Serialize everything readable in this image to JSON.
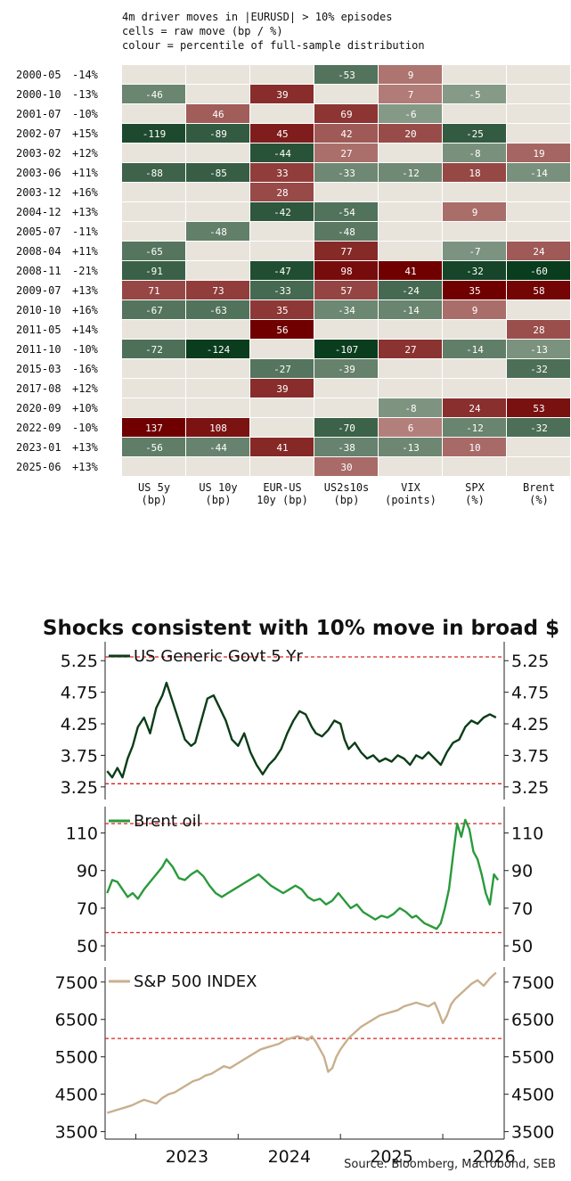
{
  "heatmap": {
    "title_lines": [
      "4m driver moves in |EURUSD| > 10% episodes",
      "cells = raw move (bp / %)",
      "colour = percentile of full-sample distribution"
    ],
    "columns": [
      {
        "name": "US 5y",
        "unit": "(bp)"
      },
      {
        "name": "US 10y",
        "unit": "(bp)"
      },
      {
        "name": "EUR-US",
        "unit": "10y (bp)"
      },
      {
        "name": "US2s10s",
        "unit": "(bp)"
      },
      {
        "name": "VIX",
        "unit": "(points)"
      },
      {
        "name": "SPX",
        "unit": "(%)"
      },
      {
        "name": "Brent",
        "unit": "(%)"
      }
    ]
  },
  "chart_data": [
    {
      "type": "heatmap",
      "rows": [
        {
          "date": "2000-05",
          "move": "-14%",
          "cells": [
            null,
            null,
            null,
            -53,
            9,
            null,
            null
          ]
        },
        {
          "date": "2000-10",
          "move": "-13%",
          "cells": [
            -46,
            null,
            39,
            null,
            7,
            -5,
            null
          ]
        },
        {
          "date": "2001-07",
          "move": "-10%",
          "cells": [
            null,
            46,
            null,
            69,
            -6,
            null,
            null
          ]
        },
        {
          "date": "2002-07",
          "move": "+15%",
          "cells": [
            -119,
            -89,
            45,
            42,
            20,
            -25,
            null
          ]
        },
        {
          "date": "2003-02",
          "move": "+12%",
          "cells": [
            null,
            null,
            -44,
            27,
            null,
            -8,
            19
          ]
        },
        {
          "date": "2003-06",
          "move": "+11%",
          "cells": [
            -88,
            -85,
            33,
            -33,
            -12,
            18,
            -14
          ]
        },
        {
          "date": "2003-12",
          "move": "+16%",
          "cells": [
            null,
            null,
            28,
            null,
            null,
            null,
            null
          ]
        },
        {
          "date": "2004-12",
          "move": "+13%",
          "cells": [
            null,
            null,
            -42,
            -54,
            null,
            9,
            null
          ]
        },
        {
          "date": "2005-07",
          "move": "-11%",
          "cells": [
            null,
            -48,
            null,
            -48,
            null,
            null,
            null
          ]
        },
        {
          "date": "2008-04",
          "move": "+11%",
          "cells": [
            -65,
            null,
            null,
            77,
            null,
            -7,
            24
          ]
        },
        {
          "date": "2008-11",
          "move": "-21%",
          "cells": [
            -91,
            null,
            -47,
            98,
            41,
            -32,
            -60
          ]
        },
        {
          "date": "2009-07",
          "move": "+13%",
          "cells": [
            71,
            73,
            -33,
            57,
            -24,
            35,
            58
          ]
        },
        {
          "date": "2010-10",
          "move": "+16%",
          "cells": [
            -67,
            -63,
            35,
            -34,
            -14,
            9,
            null
          ]
        },
        {
          "date": "2011-05",
          "move": "+14%",
          "cells": [
            null,
            null,
            56,
            null,
            null,
            null,
            28
          ]
        },
        {
          "date": "2011-10",
          "move": "-10%",
          "cells": [
            -72,
            -124,
            null,
            -107,
            27,
            -14,
            -13
          ]
        },
        {
          "date": "2015-03",
          "move": "-16%",
          "cells": [
            null,
            null,
            -27,
            -39,
            null,
            null,
            -32
          ]
        },
        {
          "date": "2017-08",
          "move": "+12%",
          "cells": [
            null,
            null,
            39,
            null,
            null,
            null,
            null
          ]
        },
        {
          "date": "2020-09",
          "move": "+10%",
          "cells": [
            null,
            null,
            null,
            null,
            -8,
            24,
            53
          ]
        },
        {
          "date": "2022-09",
          "move": "-10%",
          "cells": [
            137,
            108,
            null,
            -70,
            6,
            -12,
            -32
          ]
        },
        {
          "date": "2023-01",
          "move": "+13%",
          "cells": [
            -56,
            -44,
            41,
            -38,
            -13,
            10,
            null
          ]
        },
        {
          "date": "2025-06",
          "move": "+13%",
          "cells": [
            null,
            null,
            null,
            30,
            null,
            null,
            null
          ]
        }
      ]
    },
    {
      "type": "line",
      "title": "Shocks consistent with 10% move in broad $",
      "source": "Source: Bloomberg, Macrobond, SEB",
      "x_ticks": [
        "2023",
        "2024",
        "2025",
        "2026"
      ],
      "x_range": [
        2022.7,
        2026.6
      ],
      "panels": [
        {
          "series_name": "US Generic Govt 5 Yr",
          "color": "#0b3d17",
          "yticks": [
            "5.25",
            "4.75",
            "4.25",
            "3.75",
            "3.25"
          ],
          "ylim": [
            3.05,
            5.55
          ],
          "ref_lines": [
            5.31,
            3.3
          ],
          "x": [
            2022.72,
            2022.77,
            2022.82,
            2022.87,
            2022.92,
            2022.97,
            2023.02,
            2023.08,
            2023.14,
            2023.2,
            2023.26,
            2023.3,
            2023.36,
            2023.42,
            2023.48,
            2023.54,
            2023.58,
            2023.64,
            2023.7,
            2023.76,
            2023.82,
            2023.88,
            2023.94,
            2024.0,
            2024.06,
            2024.12,
            2024.18,
            2024.24,
            2024.3,
            2024.36,
            2024.42,
            2024.48,
            2024.54,
            2024.6,
            2024.66,
            2024.72,
            2024.76,
            2024.82,
            2024.88,
            2024.94,
            2025.0,
            2025.04,
            2025.08,
            2025.14,
            2025.2,
            2025.26,
            2025.32,
            2025.38,
            2025.44,
            2025.5,
            2025.56,
            2025.62,
            2025.68,
            2025.74,
            2025.8,
            2025.86,
            2025.92,
            2025.98,
            2026.04,
            2026.1,
            2026.16,
            2026.22,
            2026.28,
            2026.34,
            2026.4,
            2026.46,
            2026.52
          ],
          "values": [
            3.5,
            3.4,
            3.55,
            3.4,
            3.7,
            3.9,
            4.2,
            4.35,
            4.1,
            4.5,
            4.7,
            4.9,
            4.6,
            4.3,
            4.0,
            3.9,
            3.95,
            4.3,
            4.65,
            4.7,
            4.5,
            4.3,
            4.0,
            3.9,
            4.1,
            3.8,
            3.6,
            3.45,
            3.6,
            3.7,
            3.85,
            4.1,
            4.3,
            4.45,
            4.4,
            4.2,
            4.1,
            4.05,
            4.15,
            4.3,
            4.25,
            4.0,
            3.85,
            3.95,
            3.8,
            3.7,
            3.75,
            3.65,
            3.7,
            3.65,
            3.75,
            3.7,
            3.6,
            3.75,
            3.7,
            3.8,
            3.7,
            3.6,
            3.8,
            3.95,
            4.0,
            4.2,
            4.3,
            4.25,
            4.35,
            4.4,
            4.35
          ]
        },
        {
          "series_name": "Brent oil",
          "color": "#2a9a3c",
          "yticks": [
            "110",
            "90",
            "70",
            "50"
          ],
          "ylim": [
            42,
            124
          ],
          "ref_lines": [
            115,
            57
          ],
          "x": [
            2022.72,
            2022.77,
            2022.82,
            2022.87,
            2022.92,
            2022.97,
            2023.02,
            2023.08,
            2023.14,
            2023.2,
            2023.26,
            2023.3,
            2023.36,
            2023.42,
            2023.48,
            2023.54,
            2023.6,
            2023.66,
            2023.72,
            2023.78,
            2023.84,
            2023.9,
            2023.96,
            2024.02,
            2024.08,
            2024.14,
            2024.2,
            2024.26,
            2024.32,
            2024.38,
            2024.44,
            2024.5,
            2024.56,
            2024.62,
            2024.68,
            2024.74,
            2024.8,
            2024.86,
            2024.92,
            2024.98,
            2025.04,
            2025.1,
            2025.16,
            2025.22,
            2025.28,
            2025.34,
            2025.4,
            2025.46,
            2025.52,
            2025.58,
            2025.64,
            2025.7,
            2025.74,
            2025.78,
            2025.82,
            2025.86,
            2025.9,
            2025.94,
            2025.98,
            2026.02,
            2026.06,
            2026.1,
            2026.14,
            2026.18,
            2026.22,
            2026.26,
            2026.3,
            2026.34,
            2026.38,
            2026.42,
            2026.46,
            2026.5,
            2026.54
          ],
          "values": [
            78,
            85,
            84,
            80,
            76,
            78,
            75,
            80,
            84,
            88,
            92,
            96,
            92,
            86,
            85,
            88,
            90,
            87,
            82,
            78,
            76,
            78,
            80,
            82,
            84,
            86,
            88,
            85,
            82,
            80,
            78,
            80,
            82,
            80,
            76,
            74,
            75,
            72,
            74,
            78,
            74,
            70,
            72,
            68,
            66,
            64,
            66,
            65,
            67,
            70,
            68,
            65,
            66,
            64,
            62,
            61,
            60,
            59,
            62,
            70,
            80,
            98,
            115,
            108,
            117,
            112,
            100,
            96,
            88,
            78,
            72,
            88,
            85
          ]
        },
        {
          "series_name": "S&P 500 INDEX",
          "color": "#c8b08d",
          "yticks": [
            "7500",
            "6500",
            "5500",
            "4500",
            "3500"
          ],
          "ylim": [
            3300,
            7900
          ],
          "ref_lines": [
            5990
          ],
          "x": [
            2022.72,
            2022.78,
            2022.84,
            2022.9,
            2022.96,
            2023.02,
            2023.08,
            2023.14,
            2023.2,
            2023.26,
            2023.32,
            2023.38,
            2023.44,
            2023.5,
            2023.56,
            2023.62,
            2023.68,
            2023.74,
            2023.8,
            2023.86,
            2023.92,
            2023.98,
            2024.04,
            2024.1,
            2024.16,
            2024.22,
            2024.28,
            2024.34,
            2024.4,
            2024.46,
            2024.52,
            2024.58,
            2024.64,
            2024.68,
            2024.72,
            2024.76,
            2024.8,
            2024.84,
            2024.88,
            2024.92,
            2024.96,
            2025.0,
            2025.04,
            2025.08,
            2025.12,
            2025.16,
            2025.2,
            2025.26,
            2025.32,
            2025.38,
            2025.44,
            2025.5,
            2025.56,
            2025.62,
            2025.68,
            2025.74,
            2025.8,
            2025.86,
            2025.92,
            2025.96,
            2026.0,
            2026.04,
            2026.08,
            2026.12,
            2026.16,
            2026.22,
            2026.28,
            2026.34,
            2026.4,
            2026.46,
            2026.52
          ],
          "values": [
            4000,
            4050,
            4100,
            4150,
            4200,
            4280,
            4350,
            4300,
            4250,
            4400,
            4500,
            4550,
            4650,
            4750,
            4850,
            4900,
            5000,
            5050,
            5150,
            5250,
            5200,
            5300,
            5400,
            5500,
            5600,
            5700,
            5750,
            5800,
            5850,
            5950,
            6000,
            6050,
            6000,
            5950,
            6050,
            5900,
            5700,
            5500,
            5100,
            5200,
            5500,
            5700,
            5850,
            6000,
            6100,
            6200,
            6300,
            6400,
            6500,
            6600,
            6650,
            6700,
            6750,
            6850,
            6900,
            6950,
            6900,
            6850,
            6950,
            6700,
            6400,
            6600,
            6900,
            7050,
            7150,
            7300,
            7450,
            7550,
            7400,
            7600,
            7750
          ]
        }
      ]
    }
  ]
}
